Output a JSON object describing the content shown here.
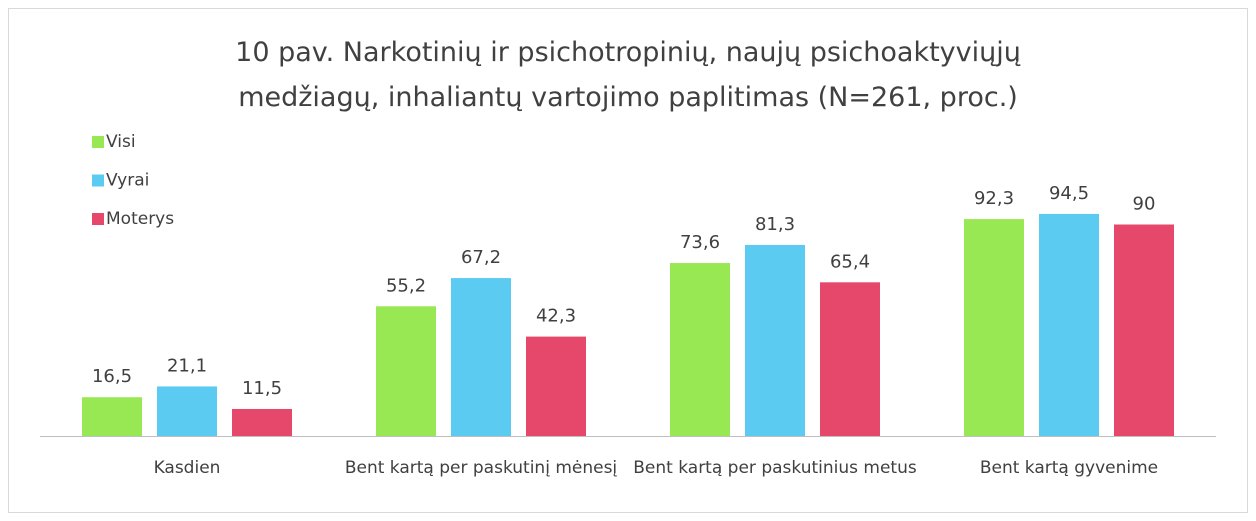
{
  "chart_data": {
    "type": "bar",
    "title": "10 pav. Narkotinių ir psichotropinių, naujų psichoaktyviųjų medžiagų, inhaliantų vartojimo paplitimas (N=261, proc.)",
    "categories": [
      "Kasdien",
      "Bent kartą per paskutinį mėnesį",
      "Bent kartą per paskutinius metus",
      "Bent kartą gyvenime"
    ],
    "series": [
      {
        "name": "Visi",
        "color": "#98e854",
        "values": [
          16.5,
          55.2,
          73.6,
          92.3
        ],
        "value_labels": [
          "16,5",
          "55,2",
          "73,6",
          "92,3"
        ]
      },
      {
        "name": "Vyrai",
        "color": "#5ccbf2",
        "values": [
          21.1,
          67.2,
          81.3,
          94.5
        ],
        "value_labels": [
          "21,1",
          "67,2",
          "81,3",
          "94,5"
        ]
      },
      {
        "name": "Moterys",
        "color": "#e6486b",
        "values": [
          11.5,
          42.3,
          65.4,
          90
        ],
        "value_labels": [
          "11,5",
          "42,3",
          "65,4",
          "90"
        ]
      }
    ],
    "legend": "top-left"
  }
}
